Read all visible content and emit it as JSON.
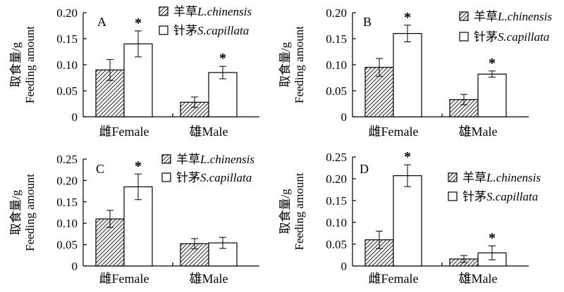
{
  "legend": {
    "species_a": "羊草",
    "species_a_latin": "L.chinensis",
    "species_b": "针茅",
    "species_b_latin": "S.capillata"
  },
  "y_axis_label_cn": "取食量/g",
  "y_axis_label_en": "Feeding amount",
  "categories": [
    "雌Female",
    "雄Male"
  ],
  "chart_data": [
    {
      "type": "bar",
      "panel": "A",
      "categories": [
        "雌Female",
        "雄Male"
      ],
      "ylim": [
        0,
        0.2
      ],
      "yticks": [
        "0",
        "0.05",
        "0.10",
        "0.15",
        "0.20"
      ],
      "series": [
        {
          "name": "羊草L.chinensis",
          "values": [
            0.09,
            0.028
          ],
          "errors": [
            0.02,
            0.01
          ]
        },
        {
          "name": "针茅S.capillata",
          "values": [
            0.14,
            0.085
          ],
          "errors": [
            0.025,
            0.012
          ]
        }
      ],
      "significance": [
        true,
        true
      ]
    },
    {
      "type": "bar",
      "panel": "B",
      "categories": [
        "雌Female",
        "雄Male"
      ],
      "ylim": [
        0,
        0.2
      ],
      "yticks": [
        "0",
        "0.05",
        "0.10",
        "0.15",
        "0.20"
      ],
      "series": [
        {
          "name": "羊草L.chinensis",
          "values": [
            0.095,
            0.033
          ],
          "errors": [
            0.017,
            0.01
          ]
        },
        {
          "name": "针茅S.capillata",
          "values": [
            0.16,
            0.082
          ],
          "errors": [
            0.016,
            0.006
          ]
        }
      ],
      "significance": [
        true,
        true
      ]
    },
    {
      "type": "bar",
      "panel": "C",
      "categories": [
        "雌Female",
        "雄Male"
      ],
      "ylim": [
        0,
        0.25
      ],
      "yticks": [
        "0",
        "0.05",
        "0.10",
        "0.15",
        "0.20",
        "0.25"
      ],
      "series": [
        {
          "name": "羊草L.chinensis",
          "values": [
            0.11,
            0.052
          ],
          "errors": [
            0.02,
            0.012
          ]
        },
        {
          "name": "针茅S.capillata",
          "values": [
            0.185,
            0.054
          ],
          "errors": [
            0.03,
            0.013
          ]
        }
      ],
      "significance": [
        true,
        false
      ]
    },
    {
      "type": "bar",
      "panel": "D",
      "categories": [
        "雌Female",
        "雄Male"
      ],
      "ylim": [
        0,
        0.25
      ],
      "yticks": [
        "0",
        "0.05",
        "0.10",
        "0.15",
        "0.20",
        "0.25"
      ],
      "series": [
        {
          "name": "羊草L.chinensis",
          "values": [
            0.06,
            0.016
          ],
          "errors": [
            0.02,
            0.008
          ]
        },
        {
          "name": "针茅S.capillata",
          "values": [
            0.207,
            0.03
          ],
          "errors": [
            0.025,
            0.016
          ]
        }
      ],
      "significance": [
        true,
        true
      ]
    }
  ]
}
